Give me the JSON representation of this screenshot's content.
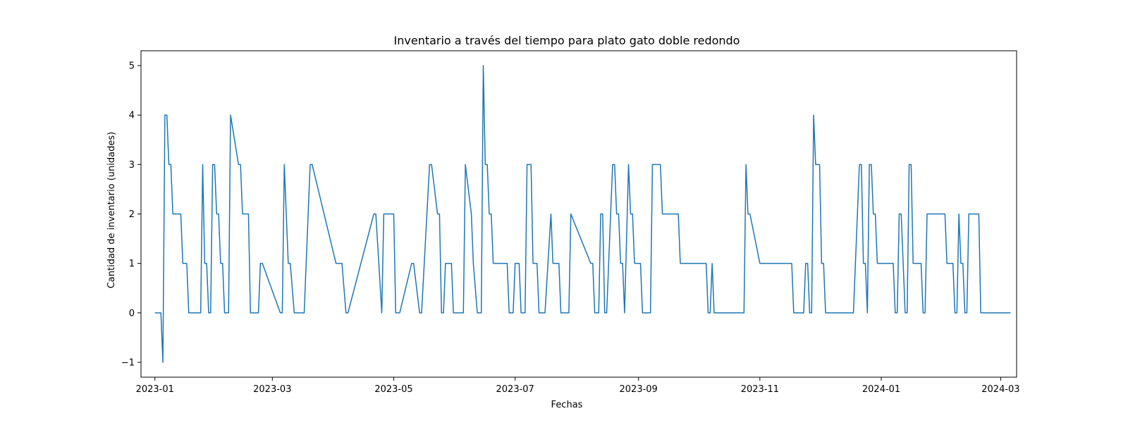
{
  "chart_data": {
    "type": "line",
    "title": "Inventario a través del tiempo para plato gato doble redondo",
    "xlabel": "Fechas",
    "ylabel": "Cantidad de inventario (unidades)",
    "xlim": [
      "2022-12-25",
      "2024-03-09"
    ],
    "ylim": [
      -1.3,
      5.3
    ],
    "x_ticks": [
      "2023-01-01",
      "2023-03-01",
      "2023-05-01",
      "2023-07-01",
      "2023-09-01",
      "2023-11-01",
      "2024-01-01",
      "2024-03-01"
    ],
    "x_tick_labels": [
      "2023-01",
      "2023-03",
      "2023-05",
      "2023-07",
      "2023-09",
      "2023-11",
      "2024-01",
      "2024-03"
    ],
    "y_ticks": [
      -1,
      0,
      1,
      2,
      3,
      4,
      5
    ],
    "y_tick_labels": [
      "−1",
      "0",
      "1",
      "2",
      "3",
      "4",
      "5"
    ],
    "grid": false,
    "series": [
      {
        "color": "#1f77b4",
        "x": [
          "2023-01-01",
          "2023-01-04",
          "2023-01-05",
          "2023-01-06",
          "2023-01-07",
          "2023-01-08",
          "2023-01-09",
          "2023-01-10",
          "2023-01-11",
          "2023-01-12",
          "2023-01-13",
          "2023-01-14",
          "2023-01-15",
          "2023-01-16",
          "2023-01-17",
          "2023-01-18",
          "2023-01-19",
          "2023-01-24",
          "2023-01-25",
          "2023-01-26",
          "2023-01-27",
          "2023-01-28",
          "2023-01-29",
          "2023-01-30",
          "2023-01-31",
          "2023-02-01",
          "2023-02-02",
          "2023-02-03",
          "2023-02-04",
          "2023-02-05",
          "2023-02-06",
          "2023-02-07",
          "2023-02-08",
          "2023-02-12",
          "2023-02-13",
          "2023-02-14",
          "2023-02-15",
          "2023-02-16",
          "2023-02-17",
          "2023-02-18",
          "2023-02-19",
          "2023-02-22",
          "2023-02-23",
          "2023-02-24",
          "2023-03-05",
          "2023-03-06",
          "2023-03-07",
          "2023-03-08",
          "2023-03-09",
          "2023-03-10",
          "2023-03-12",
          "2023-03-13",
          "2023-03-14",
          "2023-03-15",
          "2023-03-16",
          "2023-03-17",
          "2023-03-20",
          "2023-03-21",
          "2023-04-02",
          "2023-04-03",
          "2023-04-04",
          "2023-04-05",
          "2023-04-07",
          "2023-04-08",
          "2023-04-21",
          "2023-04-22",
          "2023-04-25",
          "2023-04-26",
          "2023-04-29",
          "2023-04-30",
          "2023-05-01",
          "2023-05-02",
          "2023-05-03",
          "2023-05-04",
          "2023-05-10",
          "2023-05-11",
          "2023-05-14",
          "2023-05-15",
          "2023-05-19",
          "2023-05-20",
          "2023-05-23",
          "2023-05-24",
          "2023-05-25",
          "2023-05-26",
          "2023-05-27",
          "2023-05-30",
          "2023-05-31",
          "2023-06-05",
          "2023-06-06",
          "2023-06-09",
          "2023-06-10",
          "2023-06-12",
          "2023-06-13",
          "2023-06-14",
          "2023-06-15",
          "2023-06-16",
          "2023-06-17",
          "2023-06-18",
          "2023-06-19",
          "2023-06-20",
          "2023-06-27",
          "2023-06-28",
          "2023-06-30",
          "2023-07-01",
          "2023-07-03",
          "2023-07-04",
          "2023-07-06",
          "2023-07-07",
          "2023-07-08",
          "2023-07-09",
          "2023-07-10",
          "2023-07-11",
          "2023-07-12",
          "2023-07-13",
          "2023-07-15",
          "2023-07-16",
          "2023-07-19",
          "2023-07-20",
          "2023-07-23",
          "2023-07-24",
          "2023-07-28",
          "2023-07-29",
          "2023-08-08",
          "2023-08-09",
          "2023-08-10",
          "2023-08-12",
          "2023-08-13",
          "2023-08-14",
          "2023-08-15",
          "2023-08-16",
          "2023-08-19",
          "2023-08-20",
          "2023-08-21",
          "2023-08-22",
          "2023-08-23",
          "2023-08-24",
          "2023-08-25",
          "2023-08-27",
          "2023-08-28",
          "2023-08-29",
          "2023-08-30",
          "2023-08-31",
          "2023-09-01",
          "2023-09-02",
          "2023-09-03",
          "2023-09-04",
          "2023-09-06",
          "2023-09-07",
          "2023-09-08",
          "2023-09-12",
          "2023-09-13",
          "2023-09-21",
          "2023-09-22",
          "2023-09-23",
          "2023-09-24",
          "2023-09-25",
          "2023-09-26",
          "2023-10-05",
          "2023-10-06",
          "2023-10-07",
          "2023-10-08",
          "2023-10-09",
          "2023-10-23",
          "2023-10-24",
          "2023-10-25",
          "2023-10-26",
          "2023-10-27",
          "2023-11-01",
          "2023-11-02",
          "2023-11-17",
          "2023-11-18",
          "2023-11-22",
          "2023-11-23",
          "2023-11-24",
          "2023-11-25",
          "2023-11-26",
          "2023-11-27",
          "2023-11-28",
          "2023-11-29",
          "2023-12-01",
          "2023-12-02",
          "2023-12-03",
          "2023-12-04",
          "2023-12-05",
          "2023-12-17",
          "2023-12-18",
          "2023-12-21",
          "2023-12-22",
          "2023-12-23",
          "2023-12-24",
          "2023-12-25",
          "2023-12-26",
          "2023-12-27",
          "2023-12-28",
          "2023-12-29",
          "2023-12-30",
          "2024-01-05",
          "2024-01-06",
          "2024-01-07",
          "2024-01-08",
          "2024-01-09",
          "2024-01-10",
          "2024-01-11",
          "2024-01-12",
          "2024-01-13",
          "2024-01-14",
          "2024-01-15",
          "2024-01-16",
          "2024-01-17",
          "2024-01-18",
          "2024-01-19",
          "2024-01-20",
          "2024-01-21",
          "2024-01-22",
          "2024-01-23",
          "2024-01-24",
          "2024-02-01",
          "2024-02-02",
          "2024-02-03",
          "2024-02-04",
          "2024-02-05",
          "2024-02-06",
          "2024-02-07",
          "2024-02-08",
          "2024-02-09",
          "2024-02-10",
          "2024-02-11",
          "2024-02-12",
          "2024-02-13",
          "2024-02-14",
          "2024-02-17",
          "2024-02-18",
          "2024-02-19",
          "2024-02-20",
          "2024-02-21",
          "2024-02-22",
          "2024-02-23",
          "2024-02-24",
          "2024-02-25",
          "2024-02-26",
          "2024-02-27",
          "2024-02-28",
          "2024-03-01",
          "2024-03-02",
          "2024-03-03",
          "2024-03-06"
        ],
        "y": [
          0,
          0,
          -1,
          4,
          4,
          3,
          3,
          2,
          2,
          2,
          2,
          2,
          1,
          1,
          1,
          0,
          0,
          0,
          3,
          1,
          1,
          0,
          0,
          3,
          3,
          2,
          2,
          1,
          1,
          0,
          0,
          0,
          4,
          3,
          3,
          2,
          2,
          2,
          2,
          0,
          0,
          0,
          1,
          1,
          0,
          0,
          3,
          2,
          1,
          1,
          0,
          0,
          0,
          0,
          0,
          0,
          3,
          3,
          1,
          1,
          1,
          1,
          0,
          0,
          2,
          2,
          0,
          2,
          2,
          2,
          2,
          0,
          0,
          0,
          1,
          1,
          0,
          0,
          3,
          3,
          2,
          2,
          0,
          0,
          1,
          1,
          0,
          0,
          3,
          2,
          1,
          0,
          0,
          0,
          5,
          3,
          3,
          2,
          2,
          1,
          1,
          0,
          0,
          1,
          1,
          0,
          0,
          3,
          3,
          3,
          1,
          1,
          1,
          0,
          0,
          0,
          2,
          1,
          1,
          0,
          0,
          2,
          1,
          1,
          0,
          0,
          2,
          2,
          0,
          0,
          3,
          3,
          2,
          2,
          1,
          1,
          0,
          3,
          2,
          2,
          1,
          1,
          1,
          1,
          0,
          0,
          0,
          0,
          3,
          3,
          2,
          2,
          1,
          1,
          1,
          1,
          1,
          1,
          0,
          0,
          1,
          0,
          0,
          0,
          3,
          2,
          2,
          1,
          1,
          1,
          0,
          0,
          0,
          1,
          1,
          0,
          0,
          4,
          3,
          3,
          1,
          1,
          0,
          0,
          0,
          0,
          3,
          3,
          1,
          1,
          0,
          3,
          3,
          2,
          2,
          1,
          1,
          1,
          1,
          0,
          0,
          2,
          2,
          1,
          0,
          0,
          3,
          3,
          1,
          1,
          1,
          1,
          1,
          0,
          0,
          2,
          2,
          2,
          1,
          1,
          1,
          1,
          0,
          0,
          2,
          1,
          1,
          0,
          0,
          2,
          2,
          2,
          2,
          0,
          0,
          0,
          0,
          0,
          0,
          0,
          0,
          0,
          0,
          0,
          0,
          0
        ]
      }
    ]
  }
}
